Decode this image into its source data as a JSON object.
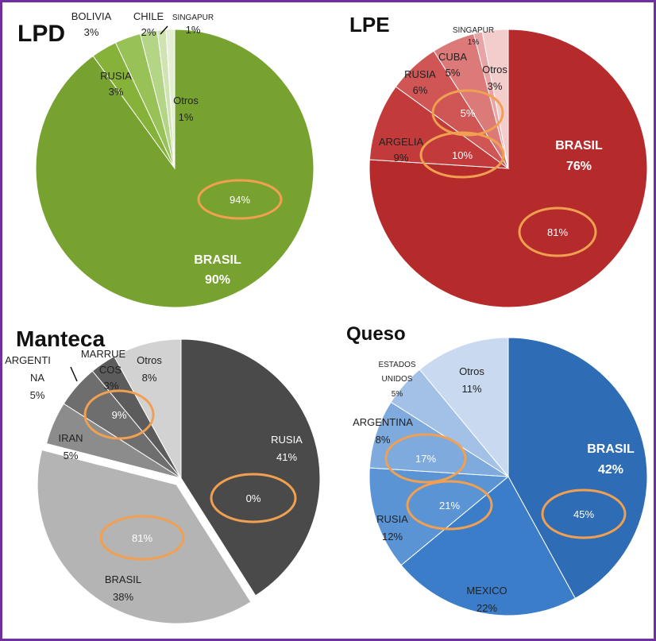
{
  "chart_data": [
    {
      "type": "pie",
      "title": "LPD",
      "slices": [
        {
          "label": "BRASIL",
          "value": 90,
          "display": "90%",
          "color": "#78a22f"
        },
        {
          "label": "RUSIA",
          "value": 3,
          "display": "3%",
          "color": "#86b23a"
        },
        {
          "label": "BOLIVIA",
          "value": 3,
          "display": "3%",
          "color": "#98c257"
        },
        {
          "label": "CHILE",
          "value": 2,
          "display": "2%",
          "color": "#b4d486"
        },
        {
          "label": "SINGAPUR",
          "value": 1,
          "display": "1%",
          "color": "#cfe3b3"
        },
        {
          "label": "Otros",
          "value": 1,
          "display": "1%",
          "color": "#e4efd6"
        }
      ],
      "annotations": [
        {
          "text": "94%"
        }
      ]
    },
    {
      "type": "pie",
      "title": "LPE",
      "slices": [
        {
          "label": "BRASIL",
          "value": 76,
          "display": "76%",
          "color": "#b52a2a"
        },
        {
          "label": "ARGELIA",
          "value": 9,
          "display": "9%",
          "color": "#c23a3a"
        },
        {
          "label": "RUSIA",
          "value": 6,
          "display": "6%",
          "color": "#d05656"
        },
        {
          "label": "CUBA",
          "value": 5,
          "display": "5%",
          "color": "#dc7a7a"
        },
        {
          "label": "SINGAPUR",
          "value": 1,
          "display": "1%",
          "color": "#e9a5a5"
        },
        {
          "label": "Otros",
          "value": 3,
          "display": "3%",
          "color": "#f3cccc"
        }
      ],
      "annotations": [
        {
          "text": "81%"
        },
        {
          "text": "10%"
        },
        {
          "text": "5%"
        }
      ]
    },
    {
      "type": "pie",
      "title": "Manteca",
      "slices": [
        {
          "label": "RUSIA",
          "value": 41,
          "display": "41%",
          "color": "#4a4a4a"
        },
        {
          "label": "BRASIL",
          "value": 38,
          "display": "38%",
          "color": "#b4b4b4"
        },
        {
          "label": "IRAN",
          "value": 5,
          "display": "5%",
          "color": "#8c8c8c"
        },
        {
          "label": "ARGENTINA",
          "value": 5,
          "display": "5%",
          "color": "#6e6e6e"
        },
        {
          "label": "MARRUECOS",
          "value": 3,
          "display": "3%",
          "color": "#5c5c5c"
        },
        {
          "label": "Otros",
          "value": 8,
          "display": "8%",
          "color": "#d2d2d2"
        }
      ],
      "annotations": [
        {
          "text": "0%"
        },
        {
          "text": "81%"
        },
        {
          "text": "9%"
        }
      ]
    },
    {
      "type": "pie",
      "title": "Queso",
      "slices": [
        {
          "label": "BRASIL",
          "value": 42,
          "display": "42%",
          "color": "#2e6cb5"
        },
        {
          "label": "MEXICO",
          "value": 22,
          "display": "22%",
          "color": "#3b7dc8"
        },
        {
          "label": "RUSIA",
          "value": 12,
          "display": "12%",
          "color": "#5b94d4"
        },
        {
          "label": "ARGENTINA",
          "value": 8,
          "display": "8%",
          "color": "#7eaade"
        },
        {
          "label": "ESTADOS UNIDOS",
          "value": 5,
          "display": "5%",
          "color": "#a3c1e6"
        },
        {
          "label": "Otros",
          "value": 11,
          "display": "11%",
          "color": "#c9d9ef"
        }
      ],
      "annotations": [
        {
          "text": "45%"
        },
        {
          "text": "21%"
        },
        {
          "text": "17%"
        }
      ]
    }
  ],
  "style": {
    "frame_color": "#7030a0",
    "highlight_color": "#f0a050"
  }
}
